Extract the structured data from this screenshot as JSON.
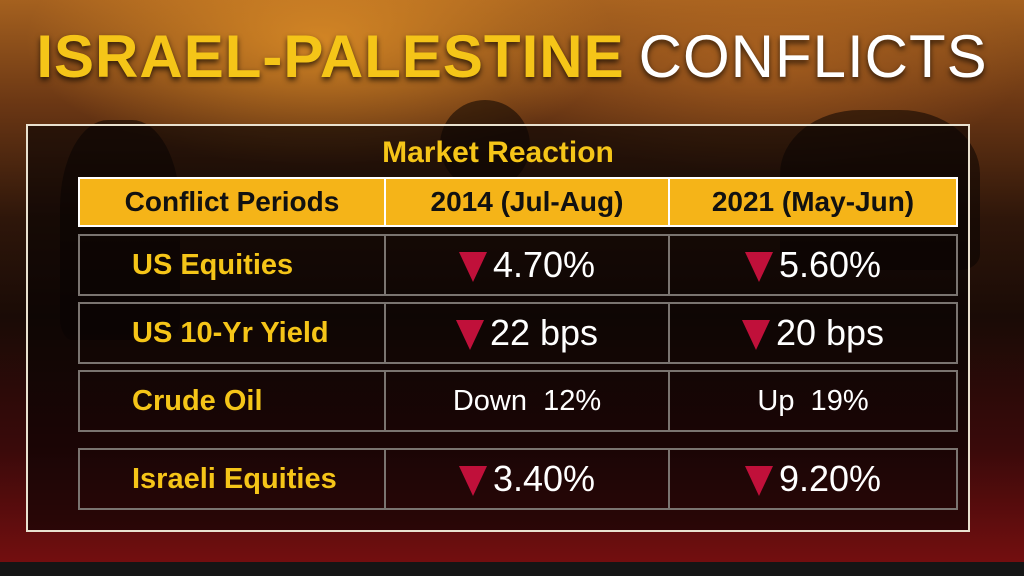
{
  "title": {
    "part1": "ISRAEL-PALESTINE",
    "part2": "CONFLICTS"
  },
  "table": {
    "heading": "Market Reaction",
    "columns": [
      "Conflict Periods",
      "2014 (Jul-Aug)",
      "2021 (May-Jun)"
    ],
    "rows": [
      {
        "label": "US Equities",
        "v2014": "4.70%",
        "v2021": "5.60%",
        "icon2014": "down-triangle-icon",
        "icon2021": "down-triangle-icon"
      },
      {
        "label": "US 10-Yr Yield",
        "v2014": "22 bps",
        "v2021": "20 bps",
        "icon2014": "down-triangle-icon",
        "icon2021": "down-triangle-icon"
      },
      {
        "label": "Crude Oil",
        "v2014": "Down  12%",
        "v2021": "Up  19%"
      },
      {
        "label": "Israeli Equities",
        "v2014": "3.40%",
        "v2021": "9.20%",
        "icon2014": "down-triangle-icon",
        "icon2021": "down-triangle-icon"
      }
    ]
  },
  "colors": {
    "accent_yellow": "#f5c518",
    "header_fill": "#f5b418",
    "down_arrow": "#c0103a"
  }
}
